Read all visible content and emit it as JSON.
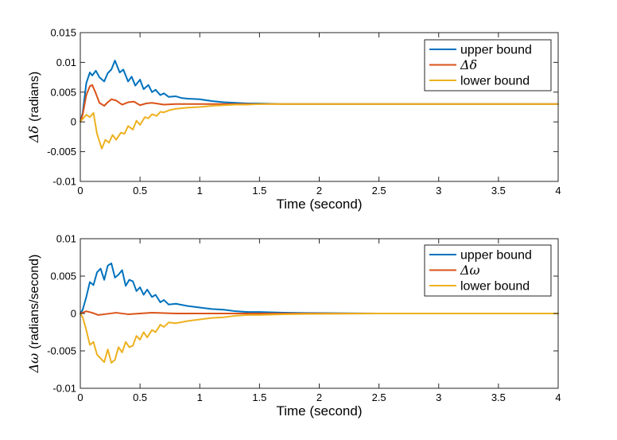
{
  "colors": {
    "upper": "#0072BD",
    "middle": "#D95319",
    "lower": "#EDB120",
    "axis": "#262626"
  },
  "chart_data": [
    {
      "type": "line",
      "ylabel_symbol": "Δδ",
      "ylabel_text": "(radians)",
      "xlabel": "Time (second)",
      "xlim": [
        0,
        4
      ],
      "ylim": [
        -0.01,
        0.015
      ],
      "xticks": [
        0,
        0.5,
        1,
        1.5,
        2,
        2.5,
        3,
        3.5,
        4
      ],
      "xtick_labels": [
        "0",
        "0.5",
        "1",
        "1.5",
        "2",
        "2.5",
        "3",
        "3.5",
        "4"
      ],
      "yticks": [
        -0.01,
        -0.005,
        0,
        0.005,
        0.01,
        0.015
      ],
      "ytick_labels": [
        "-0.01",
        "-0.005",
        "0",
        "0.005",
        "0.01",
        "0.015"
      ],
      "legend_position": "top-right",
      "legend": [
        "upper bound",
        "Δδ",
        "lower bound"
      ],
      "series": [
        {
          "name": "upper bound",
          "color_key": "upper",
          "x": [
            0,
            0.02,
            0.05,
            0.08,
            0.1,
            0.13,
            0.16,
            0.2,
            0.23,
            0.26,
            0.29,
            0.33,
            0.36,
            0.4,
            0.43,
            0.46,
            0.5,
            0.53,
            0.57,
            0.6,
            0.63,
            0.67,
            0.7,
            0.74,
            0.8,
            0.85,
            0.9,
            1.0,
            1.1,
            1.2,
            1.3,
            1.4,
            1.5,
            1.7,
            2.0,
            4.0
          ],
          "y": [
            0,
            0.0015,
            0.0065,
            0.0083,
            0.0078,
            0.0086,
            0.0075,
            0.0068,
            0.0082,
            0.0088,
            0.0103,
            0.0083,
            0.0088,
            0.0068,
            0.0076,
            0.0061,
            0.0071,
            0.0055,
            0.0062,
            0.005,
            0.0054,
            0.0045,
            0.0048,
            0.0042,
            0.0043,
            0.004,
            0.0039,
            0.0038,
            0.0035,
            0.0033,
            0.0032,
            0.0031,
            0.0031,
            0.003,
            0.003,
            0.003
          ]
        },
        {
          "name": "Δδ",
          "color_key": "middle",
          "x": [
            0,
            0.02,
            0.05,
            0.08,
            0.1,
            0.13,
            0.16,
            0.2,
            0.23,
            0.26,
            0.3,
            0.35,
            0.4,
            0.45,
            0.5,
            0.55,
            0.6,
            0.7,
            0.8,
            1.0,
            1.5,
            4.0
          ],
          "y": [
            0,
            0.0012,
            0.0045,
            0.006,
            0.0062,
            0.0048,
            0.0032,
            0.0027,
            0.0033,
            0.0038,
            0.0036,
            0.0029,
            0.0033,
            0.0034,
            0.0028,
            0.0031,
            0.0032,
            0.0029,
            0.003,
            0.003,
            0.003,
            0.003
          ]
        },
        {
          "name": "lower bound",
          "color_key": "lower",
          "x": [
            0,
            0.02,
            0.05,
            0.08,
            0.11,
            0.14,
            0.18,
            0.21,
            0.24,
            0.27,
            0.3,
            0.34,
            0.37,
            0.4,
            0.44,
            0.47,
            0.5,
            0.54,
            0.57,
            0.6,
            0.64,
            0.67,
            0.7,
            0.75,
            0.8,
            0.9,
            1.0,
            1.1,
            1.2,
            1.3,
            1.4,
            1.5,
            1.7,
            2.0,
            4.0
          ],
          "y": [
            0,
            0.0005,
            0.0012,
            0.0008,
            0.0015,
            -0.002,
            -0.0045,
            -0.003,
            -0.0035,
            -0.0022,
            -0.003,
            -0.0018,
            -0.002,
            -0.0007,
            -0.0013,
            0.0002,
            -0.0005,
            0.0008,
            0.0006,
            0.0013,
            0.001,
            0.0017,
            0.0016,
            0.002,
            0.0022,
            0.0024,
            0.0025,
            0.0027,
            0.0028,
            0.0029,
            0.0029,
            0.003,
            0.003,
            0.003,
            0.003
          ]
        }
      ]
    },
    {
      "type": "line",
      "ylabel_symbol": "Δω",
      "ylabel_text": "(radians/second)",
      "xlabel": "Time (second)",
      "xlim": [
        0,
        4
      ],
      "ylim": [
        -0.01,
        0.01
      ],
      "xticks": [
        0,
        0.5,
        1,
        1.5,
        2,
        2.5,
        3,
        3.5,
        4
      ],
      "xtick_labels": [
        "0",
        "0.5",
        "1",
        "1.5",
        "2",
        "2.5",
        "3",
        "3.5",
        "4"
      ],
      "yticks": [
        -0.01,
        -0.005,
        0,
        0.005,
        0.01
      ],
      "ytick_labels": [
        "-0.01",
        "-0.005",
        "0",
        "0.005",
        "0.01"
      ],
      "legend_position": "top-right",
      "legend": [
        "upper bound",
        "Δω",
        "lower bound"
      ],
      "series": [
        {
          "name": "upper bound",
          "color_key": "upper",
          "x": [
            0,
            0.02,
            0.05,
            0.08,
            0.11,
            0.14,
            0.17,
            0.2,
            0.23,
            0.26,
            0.29,
            0.32,
            0.35,
            0.38,
            0.41,
            0.44,
            0.47,
            0.5,
            0.53,
            0.56,
            0.6,
            0.63,
            0.67,
            0.7,
            0.74,
            0.8,
            0.9,
            1.0,
            1.1,
            1.2,
            1.3,
            1.4,
            1.5,
            1.7,
            2.0,
            2.5,
            4.0
          ],
          "y": [
            0,
            0.0005,
            0.0022,
            0.0042,
            0.0038,
            0.0055,
            0.006,
            0.0045,
            0.0064,
            0.0067,
            0.0048,
            0.0052,
            0.0058,
            0.0037,
            0.0045,
            0.0043,
            0.003,
            0.0035,
            0.0025,
            0.0032,
            0.0022,
            0.0025,
            0.0015,
            0.0018,
            0.0012,
            0.0013,
            0.001,
            0.0008,
            0.0006,
            0.0005,
            0.0003,
            0.0002,
            0.0002,
            0.0001,
            5e-05,
            0,
            0
          ]
        },
        {
          "name": "Δω",
          "color_key": "middle",
          "x": [
            0,
            0.05,
            0.1,
            0.15,
            0.2,
            0.3,
            0.4,
            0.5,
            0.6,
            0.8,
            1.0,
            4.0
          ],
          "y": [
            0,
            0.0003,
            0.0001,
            -0.0002,
            -0.0001,
            0.0001,
            -0.0001,
            0,
            0.0001,
            0,
            0,
            0
          ]
        },
        {
          "name": "lower bound",
          "color_key": "lower",
          "x": [
            0,
            0.02,
            0.05,
            0.08,
            0.11,
            0.14,
            0.17,
            0.2,
            0.23,
            0.26,
            0.29,
            0.32,
            0.35,
            0.38,
            0.41,
            0.44,
            0.47,
            0.5,
            0.53,
            0.56,
            0.6,
            0.63,
            0.67,
            0.7,
            0.74,
            0.8,
            0.9,
            1.0,
            1.1,
            1.2,
            1.3,
            1.4,
            1.5,
            1.7,
            2.0,
            2.5,
            4.0
          ],
          "y": [
            0,
            -0.0005,
            -0.0022,
            -0.0042,
            -0.0038,
            -0.0055,
            -0.006,
            -0.0065,
            -0.0048,
            -0.0066,
            -0.0062,
            -0.0045,
            -0.0052,
            -0.0038,
            -0.0045,
            -0.0043,
            -0.003,
            -0.0035,
            -0.0025,
            -0.0032,
            -0.0022,
            -0.0025,
            -0.0015,
            -0.0018,
            -0.0012,
            -0.0013,
            -0.001,
            -0.0008,
            -0.0006,
            -0.0005,
            -0.0003,
            -0.0002,
            -0.0002,
            -0.0001,
            -5e-05,
            0,
            0
          ]
        }
      ]
    }
  ]
}
